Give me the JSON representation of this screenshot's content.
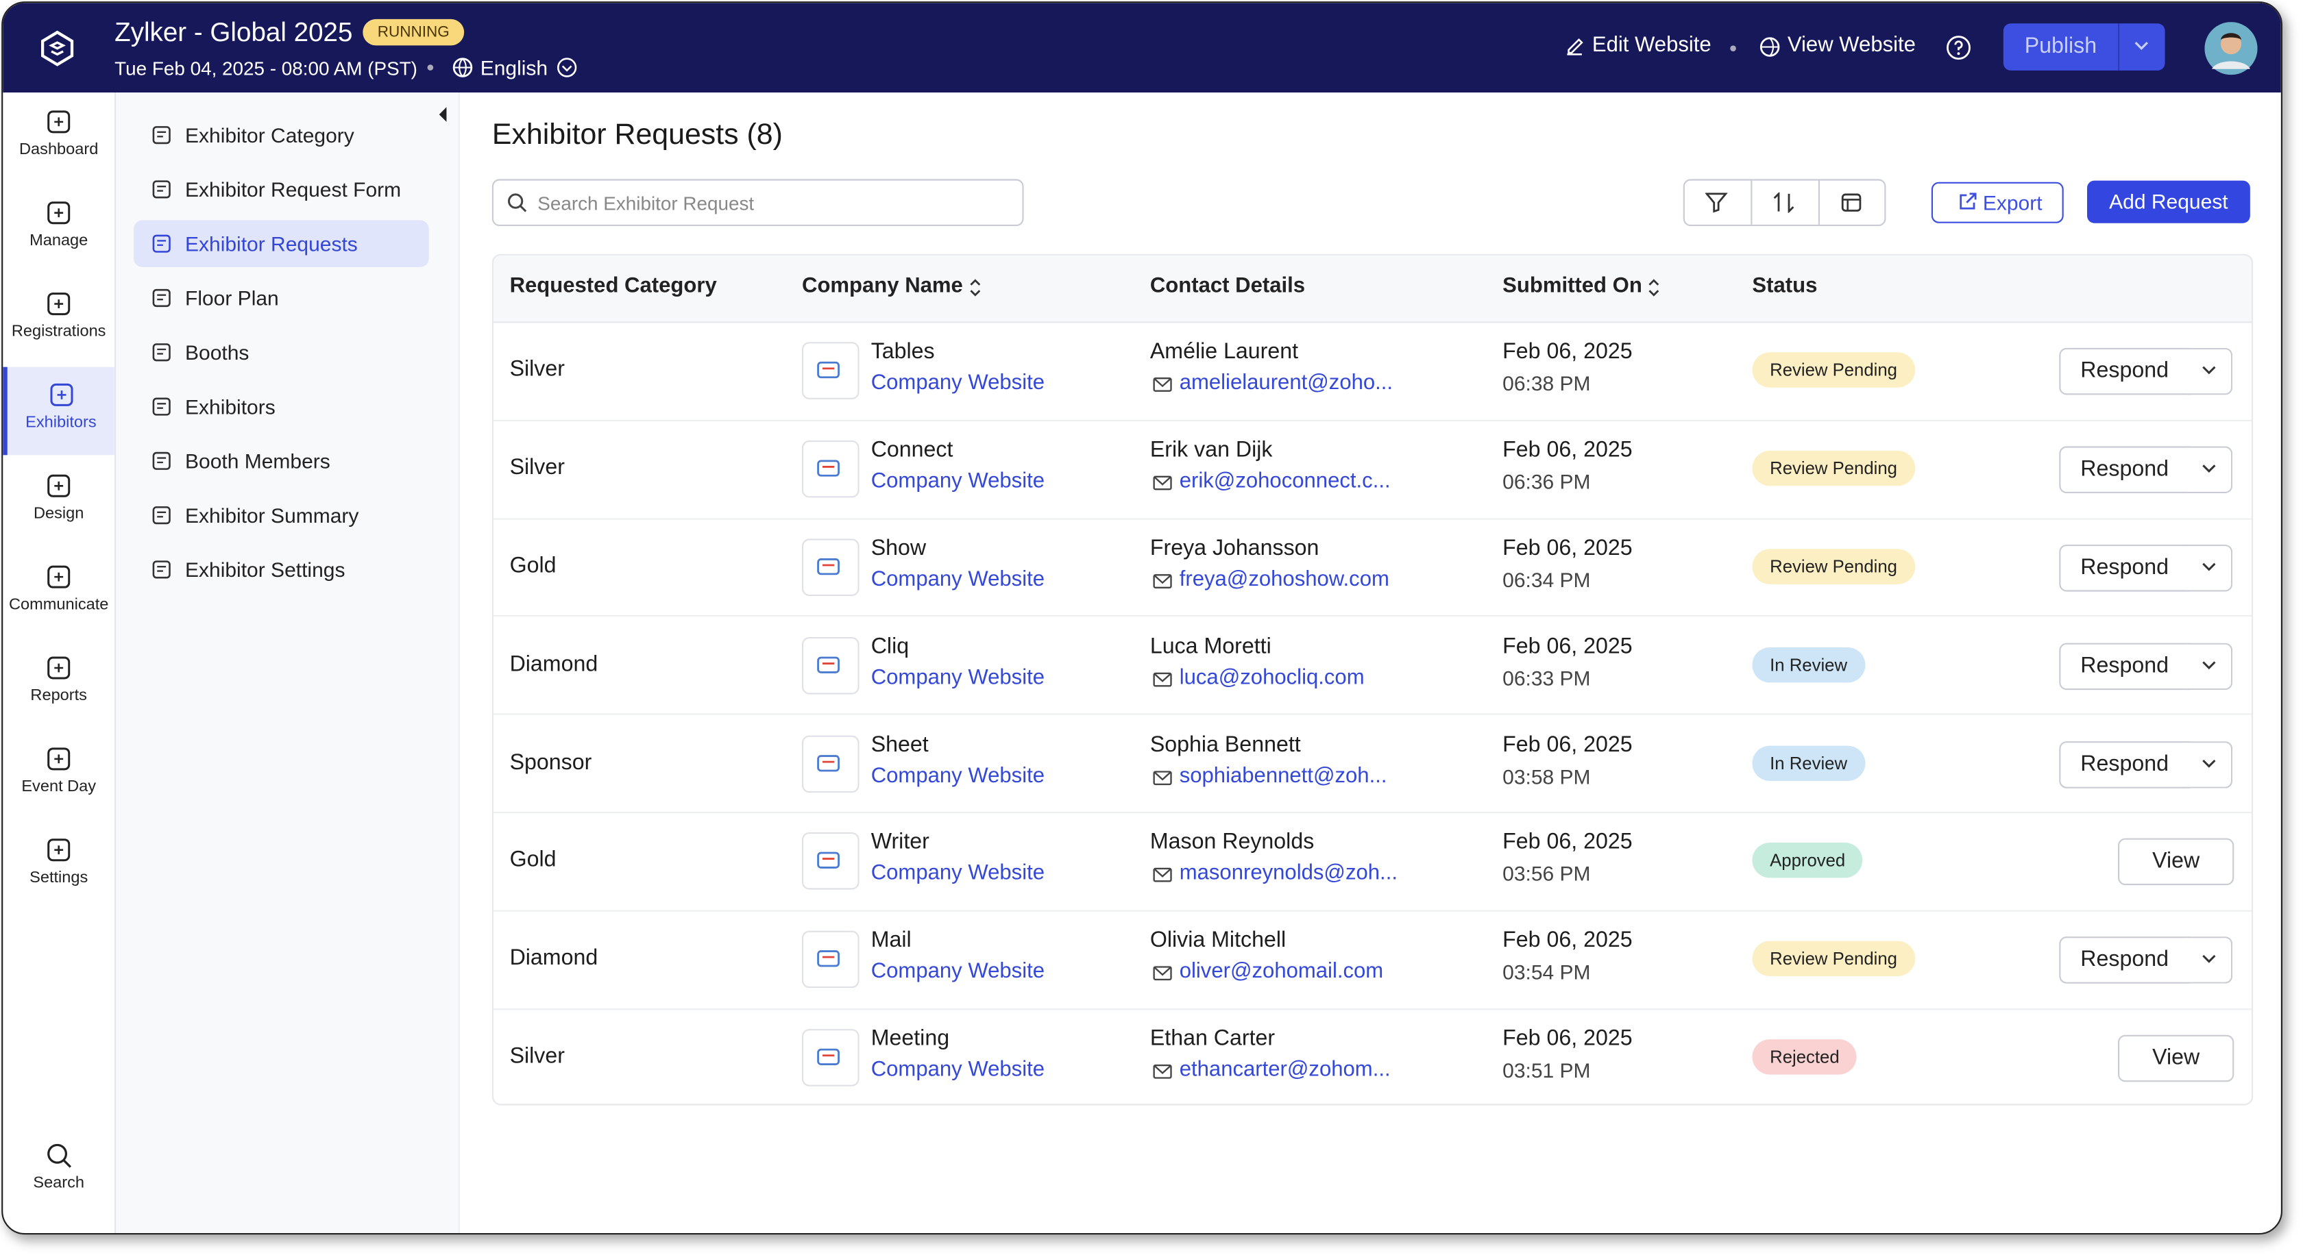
{
  "header": {
    "app_name": "Zylker - Global 2025",
    "badge": "RUNNING",
    "datetime": "Tue Feb 04, 2025 - 08:00 AM (PST)",
    "language": "English",
    "edit_website": "Edit Website",
    "view_website": "View Website",
    "publish": "Publish"
  },
  "rail": {
    "items": [
      "Dashboard",
      "Manage",
      "Registrations",
      "Exhibitors",
      "Design",
      "Communicate",
      "Reports",
      "Event Day",
      "Settings"
    ],
    "active": 3,
    "search": "Search"
  },
  "subnav": {
    "items": [
      "Exhibitor Category",
      "Exhibitor Request Form",
      "Exhibitor Requests",
      "Floor Plan",
      "Booths",
      "Exhibitors",
      "Booth Members",
      "Exhibitor Summary",
      "Exhibitor Settings"
    ],
    "active": 2
  },
  "main": {
    "title": "Exhibitor Requests (8)",
    "search_placeholder": "Search Exhibitor Request",
    "export": "Export",
    "add_request": "Add Request"
  },
  "table": {
    "columns": [
      {
        "label": "Requested Category",
        "sortable": false
      },
      {
        "label": "Company Name",
        "sortable": true
      },
      {
        "label": "Contact Details",
        "sortable": false
      },
      {
        "label": "Submitted On",
        "sortable": true
      },
      {
        "label": "Status",
        "sortable": false
      }
    ],
    "rows": [
      {
        "category": "Silver",
        "company": "Tables",
        "website": "Company Website",
        "contact": "Amélie Laurent",
        "email": "amelielaurent@zoho...",
        "date": "Feb 06, 2025",
        "time": "06:38 PM",
        "status": "Review Pending",
        "status_color": "#fcefc4",
        "action": "Respond",
        "has_menu": true
      },
      {
        "category": "Silver",
        "company": "Connect",
        "website": "Company Website",
        "contact": "Erik van Dijk",
        "email": "erik@zohoconnect.c...",
        "date": "Feb 06, 2025",
        "time": "06:36 PM",
        "status": "Review Pending",
        "status_color": "#fcefc4",
        "action": "Respond",
        "has_menu": true
      },
      {
        "category": "Gold",
        "company": "Show",
        "website": "Company Website",
        "contact": "Freya Johansson",
        "email": "freya@zohoshow.com",
        "date": "Feb 06, 2025",
        "time": "06:34 PM",
        "status": "Review Pending",
        "status_color": "#fcefc4",
        "action": "Respond",
        "has_menu": true
      },
      {
        "category": "Diamond",
        "company": "Cliq",
        "website": "Company Website",
        "contact": "Luca Moretti",
        "email": "luca@zohocliq.com",
        "date": "Feb 06, 2025",
        "time": "06:33 PM",
        "status": "In Review",
        "status_color": "#cde5f6",
        "action": "Respond",
        "has_menu": true
      },
      {
        "category": "Sponsor",
        "company": "Sheet",
        "website": "Company Website",
        "contact": "Sophia Bennett",
        "email": "sophiabennett@zoh...",
        "date": "Feb 06, 2025",
        "time": "03:58 PM",
        "status": "In Review",
        "status_color": "#cde5f6",
        "action": "Respond",
        "has_menu": true
      },
      {
        "category": "Gold",
        "company": "Writer",
        "website": "Company Website",
        "contact": "Mason Reynolds",
        "email": "masonreynolds@zoh...",
        "date": "Feb 06, 2025",
        "time": "03:56 PM",
        "status": "Approved",
        "status_color": "#c6ecdd",
        "action": "View",
        "has_menu": false
      },
      {
        "category": "Diamond",
        "company": "Mail",
        "website": "Company Website",
        "contact": "Olivia Mitchell",
        "email": "oliver@zohomail.com",
        "date": "Feb 06, 2025",
        "time": "03:54 PM",
        "status": "Review Pending",
        "status_color": "#fcefc4",
        "action": "Respond",
        "has_menu": true
      },
      {
        "category": "Silver",
        "company": "Meeting",
        "website": "Company Website",
        "contact": "Ethan Carter",
        "email": "ethancarter@zohom...",
        "date": "Feb 06, 2025",
        "time": "03:51 PM",
        "status": "Rejected",
        "status_color": "#fbd2d2",
        "action": "View",
        "has_menu": false
      }
    ]
  }
}
